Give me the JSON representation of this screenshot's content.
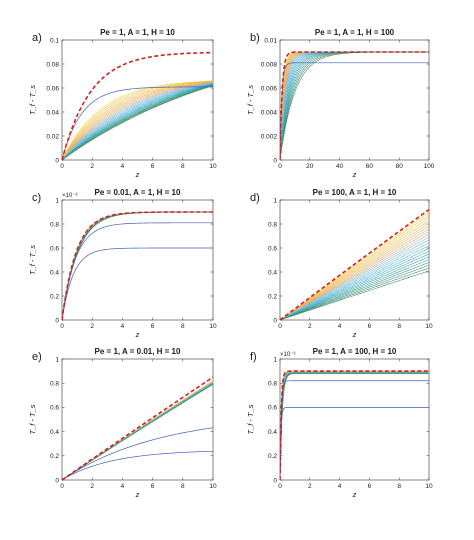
{
  "chart_data": [
    {
      "panel": "a)",
      "type": "line",
      "title": "Pe = 1, A = 1, H = 10",
      "xlabel": "z",
      "ylabel": "T_f - T_s",
      "xlim": [
        0,
        10
      ],
      "ylim": [
        0,
        0.1
      ],
      "xticks": [
        "0",
        "2",
        "4",
        "6",
        "8",
        "10"
      ],
      "yticks": [
        "0",
        "0.02",
        "0.04",
        "0.06",
        "0.08",
        "0.1"
      ],
      "scale_note": "",
      "family": {
        "start": [
          0,
          0
        ],
        "end_top": 0.066,
        "end_bottom": 0.062,
        "knee_top": 2.6,
        "knee_bottom": 12,
        "count": 22
      },
      "blue_line": {
        "knee": 1.3,
        "plateau": 0.061
      },
      "red_dashed": {
        "knee": 1.9,
        "plateau": 0.09
      }
    },
    {
      "panel": "b)",
      "type": "line",
      "title": "Pe = 1, A = 1, H = 100",
      "xlabel": "z",
      "ylabel": "T_f - T_s",
      "xlim": [
        0,
        100
      ],
      "ylim": [
        0,
        0.01
      ],
      "xticks": [
        "0",
        "20",
        "40",
        "60",
        "80",
        "100"
      ],
      "yticks": [
        "0",
        "0.002",
        "0.004",
        "0.006",
        "0.008",
        "0.01"
      ],
      "scale_note": "",
      "family": {
        "start": [
          0,
          0
        ],
        "end_top": 0.009,
        "end_bottom": 0.009,
        "knee_top": 1.8,
        "knee_bottom": 10,
        "count": 22
      },
      "blue_line": {
        "knee": 1.2,
        "plateau": 0.0081
      },
      "red_dashed": {
        "knee": 1.4,
        "plateau": 0.009
      }
    },
    {
      "panel": "c)",
      "type": "line",
      "title": "Pe = 0.01, A = 1, H = 10",
      "xlabel": "z",
      "ylabel": "T_f - T_s",
      "xlim": [
        0,
        10
      ],
      "ylim": [
        0,
        1
      ],
      "xticks": [
        "0",
        "2",
        "4",
        "6",
        "8",
        "10"
      ],
      "yticks": [
        "0",
        "0.2",
        "0.4",
        "0.6",
        "0.8",
        "1"
      ],
      "scale_note": "×10⁻³",
      "family": {
        "start": [
          0,
          0
        ],
        "end_top": 0.9,
        "end_bottom": 0.9,
        "knee_top": 0.95,
        "knee_bottom": 1.05,
        "count": 22
      },
      "blue_lines": [
        {
          "knee": 0.9,
          "plateau": 0.81
        },
        {
          "knee": 0.75,
          "plateau": 0.6
        }
      ],
      "red_dashed": {
        "knee": 0.95,
        "plateau": 0.9
      }
    },
    {
      "panel": "d)",
      "type": "line",
      "title": "Pe = 100, A = 1, H = 10",
      "xlabel": "z",
      "ylabel": "",
      "xlim": [
        0,
        10
      ],
      "ylim": [
        0,
        1
      ],
      "xticks": [
        "0",
        "2",
        "4",
        "6",
        "8",
        "10"
      ],
      "yticks": [
        "0",
        "0.2",
        "0.4",
        "0.6",
        "0.8",
        "1"
      ],
      "scale_note": "",
      "family": {
        "start": [
          0,
          0
        ],
        "end_top": 0.9,
        "end_bottom": 0.41,
        "count": 22
      },
      "red_dashed": {
        "end": 0.92
      }
    },
    {
      "panel": "e)",
      "type": "line",
      "title": "Pe = 1, A = 0.01, H = 10",
      "xlabel": "z",
      "ylabel": "T_f - T_s",
      "xlim": [
        0,
        10
      ],
      "ylim": [
        0,
        1
      ],
      "xticks": [
        "0",
        "2",
        "4",
        "6",
        "8",
        "10"
      ],
      "yticks": [
        "0",
        "0.2",
        "0.4",
        "0.6",
        "0.8",
        "1"
      ],
      "scale_note": "",
      "family": {
        "start": [
          0,
          0
        ],
        "end_top": 0.82,
        "end_bottom": 0.79,
        "count": 12
      },
      "blue_lines": [
        {
          "knee": 6.5,
          "plateau": 0.55
        },
        {
          "knee": 3.3,
          "plateau": 0.25
        }
      ],
      "red_dashed": {
        "end": 0.85
      }
    },
    {
      "panel": "f)",
      "type": "line",
      "title": "Pe = 1, A = 100, H = 10",
      "xlabel": "z",
      "ylabel": "T_f - T_s",
      "xlim": [
        0,
        10
      ],
      "ylim": [
        0,
        1
      ],
      "xticks": [
        "0",
        "2",
        "4",
        "6",
        "8",
        "10"
      ],
      "yticks": [
        "0",
        "0.2",
        "0.4",
        "0.6",
        "0.8",
        "1"
      ],
      "scale_note": "×10⁻³",
      "family": {
        "start": [
          0,
          0
        ],
        "end_top": 0.9,
        "end_bottom": 0.88,
        "knee_top": 0.08,
        "knee_bottom": 0.14,
        "count": 18
      },
      "blue_lines": [
        {
          "knee": 0.07,
          "plateau": 0.82
        },
        {
          "knee": 0.06,
          "plateau": 0.6
        }
      ],
      "red_dashed": {
        "knee": 0.08,
        "plateau": 0.9
      }
    }
  ]
}
